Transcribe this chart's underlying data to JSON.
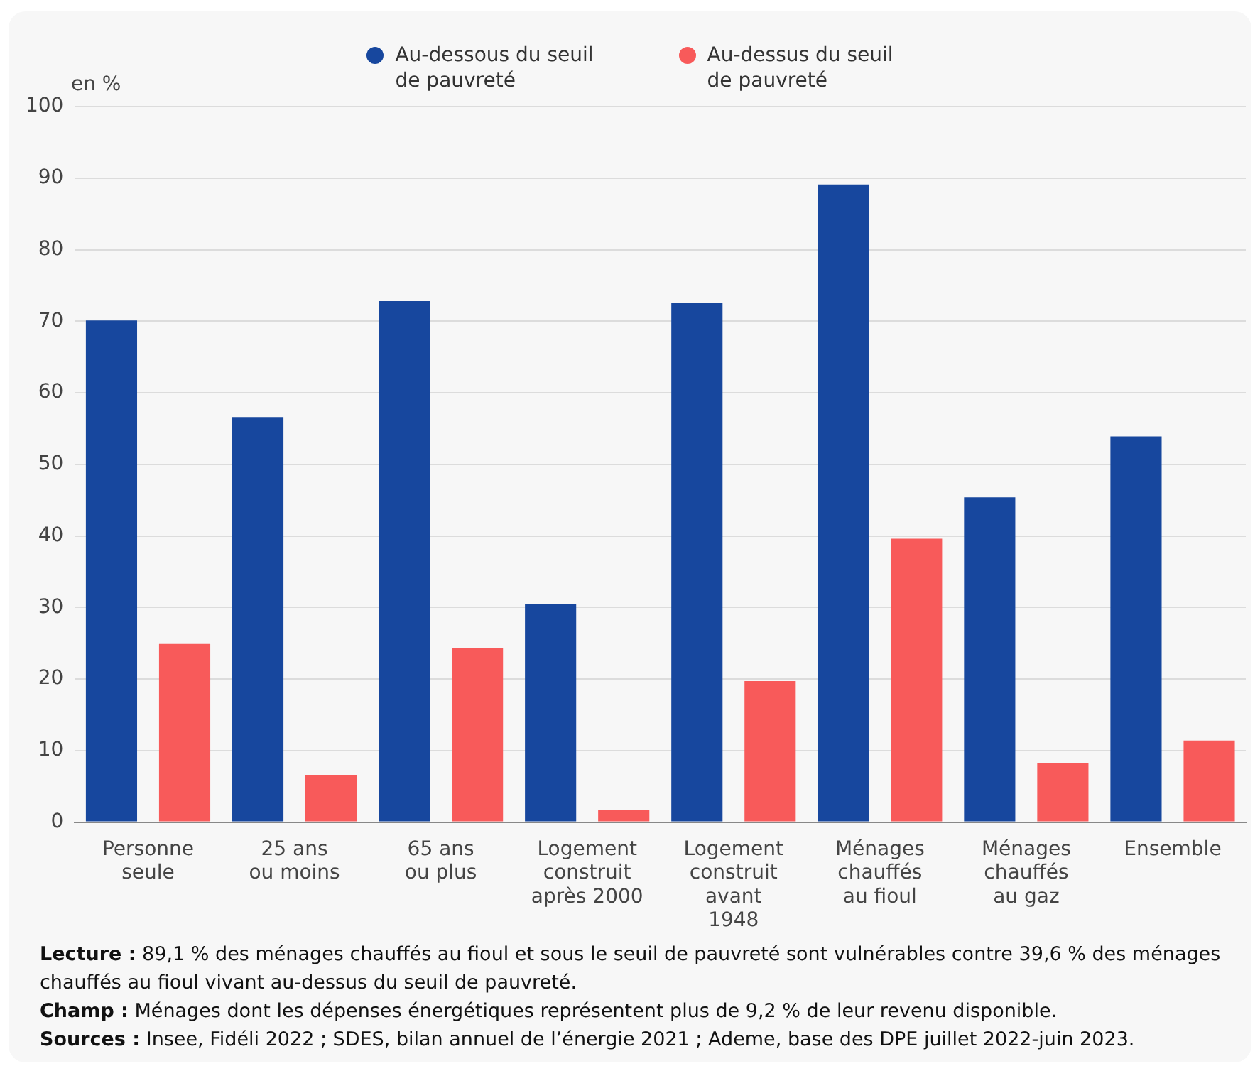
{
  "chart_data": {
    "type": "bar",
    "ylabel": "en %",
    "categories": [
      "Personne\nseule",
      "25 ans\nou moins",
      "65 ans\nou plus",
      "Logement\nconstruit\naprès 2000",
      "Logement\nconstruit\navant\n1948",
      "Ménages\nchauffés\nau fioul",
      "Ménages\nchauffés\nau gaz",
      "Ensemble"
    ],
    "series": [
      {
        "name": "Au-dessous du seuil\nde pauvreté",
        "color": "#17479e",
        "values": [
          70.1,
          56.6,
          72.8,
          30.5,
          72.6,
          89.1,
          45.4,
          53.9
        ]
      },
      {
        "name": "Au-dessus du seuil\nde pauvreté",
        "color": "#f85a5a",
        "values": [
          24.9,
          6.6,
          24.3,
          1.7,
          19.7,
          39.6,
          8.3,
          11.4
        ]
      }
    ],
    "ylim": [
      0,
      100
    ],
    "yticks": [
      0,
      10,
      20,
      30,
      40,
      50,
      60,
      70,
      80,
      90,
      100
    ],
    "grid": "y",
    "legend": "top",
    "annotations": [
      "Lecture : 89,1 % des ménages chauffés au fioul et sous le seuil de pauvreté sont vulnérables contre 39,6 % des ménages chauffés au fioul vivant au-dessus du seuil de pauvreté.",
      "Champ : Ménages dont les dépenses énergétiques représentent plus de 9,2 % de leur revenu disponible.",
      "Sources : Insee, Fidéli 2022 ; SDES, bilan annuel de l’énergie 2021 ; Ademe, base des DPE juillet 2022-juin 2023."
    ]
  }
}
